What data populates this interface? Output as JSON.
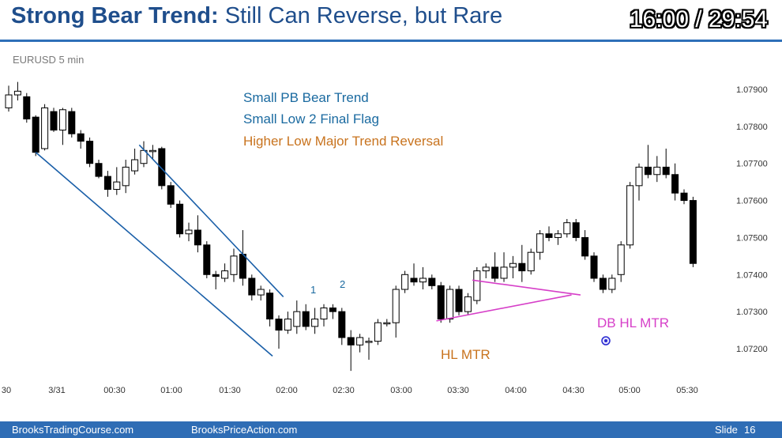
{
  "header": {
    "title_bold": "Strong Bear Trend:",
    "title_rest": " Still Can Reverse, but Rare",
    "timer": "16:00 / 29:54"
  },
  "symbol": "EURUSD 5 min",
  "footer": {
    "left": "BrooksTradingCourse.com",
    "center": "BrooksPriceAction.com",
    "slide_label": "Slide",
    "slide_number": "16"
  },
  "colors": {
    "title": "#1f4e8c",
    "accent_blue": "#2f6db5",
    "annotation_blue": "#1a6aa0",
    "annotation_orange": "#c8731e",
    "annotation_magenta": "#d63fc8",
    "trend_channel": "#1a5fa8"
  },
  "chart_data": {
    "type": "candlestick",
    "symbol": "EURUSD",
    "timeframe": "5 min",
    "x_tick_labels": [
      "30",
      "3/31",
      "00:30",
      "01:00",
      "01:30",
      "02:00",
      "02:30",
      "03:00",
      "03:30",
      "04:00",
      "04:30",
      "05:00",
      "05:30"
    ],
    "y_tick_labels": [
      "1.07900",
      "1.07800",
      "1.07700",
      "1.07600",
      "1.07500",
      "1.07400",
      "1.07300",
      "1.07200"
    ],
    "ylim": [
      1.0714,
      1.0795
    ],
    "grid": false,
    "annotations": {
      "line1": "Small PB Bear Trend",
      "line2": "Small Low 2 Final Flag",
      "line3": "Higher Low Major Trend Reversal",
      "label_1": "1",
      "label_2": "2",
      "hl_mtr": "HL MTR",
      "db_hl_mtr": "DB HL MTR"
    },
    "candles": [
      {
        "o": 1.0785,
        "h": 1.0791,
        "l": 1.0784,
        "c": 1.07885
      },
      {
        "o": 1.07885,
        "h": 1.0792,
        "l": 1.0787,
        "c": 1.07895
      },
      {
        "o": 1.0788,
        "h": 1.0789,
        "l": 1.0781,
        "c": 1.0782
      },
      {
        "o": 1.07825,
        "h": 1.0783,
        "l": 1.0772,
        "c": 1.0773
      },
      {
        "o": 1.0774,
        "h": 1.0786,
        "l": 1.07735,
        "c": 1.0785
      },
      {
        "o": 1.0784,
        "h": 1.0785,
        "l": 1.07785,
        "c": 1.0779
      },
      {
        "o": 1.0779,
        "h": 1.0785,
        "l": 1.0775,
        "c": 1.07845
      },
      {
        "o": 1.0784,
        "h": 1.0785,
        "l": 1.0777,
        "c": 1.0778
      },
      {
        "o": 1.0778,
        "h": 1.0779,
        "l": 1.0774,
        "c": 1.0776
      },
      {
        "o": 1.0776,
        "h": 1.0777,
        "l": 1.0769,
        "c": 1.077
      },
      {
        "o": 1.077,
        "h": 1.0771,
        "l": 1.0766,
        "c": 1.07665
      },
      {
        "o": 1.07665,
        "h": 1.0768,
        "l": 1.0761,
        "c": 1.0763
      },
      {
        "o": 1.0763,
        "h": 1.0769,
        "l": 1.07615,
        "c": 1.0765
      },
      {
        "o": 1.0764,
        "h": 1.0771,
        "l": 1.0762,
        "c": 1.0769
      },
      {
        "o": 1.0768,
        "h": 1.0774,
        "l": 1.0767,
        "c": 1.0771
      },
      {
        "o": 1.077,
        "h": 1.0776,
        "l": 1.0769,
        "c": 1.07735
      },
      {
        "o": 1.07735,
        "h": 1.0775,
        "l": 1.0771,
        "c": 1.07735
      },
      {
        "o": 1.0774,
        "h": 1.07745,
        "l": 1.0763,
        "c": 1.0764
      },
      {
        "o": 1.0764,
        "h": 1.0765,
        "l": 1.0758,
        "c": 1.0759
      },
      {
        "o": 1.0759,
        "h": 1.076,
        "l": 1.075,
        "c": 1.0751
      },
      {
        "o": 1.0751,
        "h": 1.0754,
        "l": 1.0749,
        "c": 1.0752
      },
      {
        "o": 1.0752,
        "h": 1.0756,
        "l": 1.0746,
        "c": 1.0748
      },
      {
        "o": 1.0748,
        "h": 1.0749,
        "l": 1.0739,
        "c": 1.074
      },
      {
        "o": 1.074,
        "h": 1.0741,
        "l": 1.0736,
        "c": 1.07395
      },
      {
        "o": 1.0739,
        "h": 1.0743,
        "l": 1.0738,
        "c": 1.0741
      },
      {
        "o": 1.074,
        "h": 1.0747,
        "l": 1.0738,
        "c": 1.0745
      },
      {
        "o": 1.07455,
        "h": 1.0752,
        "l": 1.0737,
        "c": 1.0739
      },
      {
        "o": 1.0739,
        "h": 1.074,
        "l": 1.0733,
        "c": 1.07345
      },
      {
        "o": 1.07345,
        "h": 1.0737,
        "l": 1.0733,
        "c": 1.0736
      },
      {
        "o": 1.0735,
        "h": 1.0736,
        "l": 1.0726,
        "c": 1.0728
      },
      {
        "o": 1.0728,
        "h": 1.0729,
        "l": 1.072,
        "c": 1.0725
      },
      {
        "o": 1.0725,
        "h": 1.073,
        "l": 1.0724,
        "c": 1.0728
      },
      {
        "o": 1.0726,
        "h": 1.0733,
        "l": 1.0724,
        "c": 1.073
      },
      {
        "o": 1.073,
        "h": 1.0732,
        "l": 1.0725,
        "c": 1.0726
      },
      {
        "o": 1.0726,
        "h": 1.0731,
        "l": 1.0724,
        "c": 1.0728
      },
      {
        "o": 1.0728,
        "h": 1.0732,
        "l": 1.0726,
        "c": 1.0731
      },
      {
        "o": 1.0731,
        "h": 1.0732,
        "l": 1.0728,
        "c": 1.073
      },
      {
        "o": 1.073,
        "h": 1.0731,
        "l": 1.0721,
        "c": 1.0723
      },
      {
        "o": 1.0723,
        "h": 1.0725,
        "l": 1.0714,
        "c": 1.0721
      },
      {
        "o": 1.0721,
        "h": 1.0724,
        "l": 1.0719,
        "c": 1.0723
      },
      {
        "o": 1.0722,
        "h": 1.0723,
        "l": 1.0717,
        "c": 1.0722
      },
      {
        "o": 1.0722,
        "h": 1.0728,
        "l": 1.0721,
        "c": 1.0727
      },
      {
        "o": 1.0727,
        "h": 1.0728,
        "l": 1.0726,
        "c": 1.0727
      },
      {
        "o": 1.0727,
        "h": 1.0737,
        "l": 1.0723,
        "c": 1.0736
      },
      {
        "o": 1.0736,
        "h": 1.0741,
        "l": 1.0735,
        "c": 1.074
      },
      {
        "o": 1.0739,
        "h": 1.0743,
        "l": 1.0737,
        "c": 1.0738
      },
      {
        "o": 1.0738,
        "h": 1.0742,
        "l": 1.0736,
        "c": 1.0739
      },
      {
        "o": 1.0739,
        "h": 1.074,
        "l": 1.0736,
        "c": 1.0737
      },
      {
        "o": 1.0737,
        "h": 1.0738,
        "l": 1.0727,
        "c": 1.0728
      },
      {
        "o": 1.0728,
        "h": 1.0737,
        "l": 1.0727,
        "c": 1.0736
      },
      {
        "o": 1.0736,
        "h": 1.0737,
        "l": 1.0729,
        "c": 1.073
      },
      {
        "o": 1.073,
        "h": 1.0735,
        "l": 1.0729,
        "c": 1.0734
      },
      {
        "o": 1.0733,
        "h": 1.0742,
        "l": 1.0732,
        "c": 1.0741
      },
      {
        "o": 1.0741,
        "h": 1.0743,
        "l": 1.0739,
        "c": 1.0742
      },
      {
        "o": 1.0742,
        "h": 1.0746,
        "l": 1.0738,
        "c": 1.0739
      },
      {
        "o": 1.0739,
        "h": 1.0746,
        "l": 1.0738,
        "c": 1.0742
      },
      {
        "o": 1.0742,
        "h": 1.0745,
        "l": 1.0739,
        "c": 1.0743
      },
      {
        "o": 1.0743,
        "h": 1.0748,
        "l": 1.0738,
        "c": 1.0741
      },
      {
        "o": 1.0741,
        "h": 1.0747,
        "l": 1.074,
        "c": 1.0746
      },
      {
        "o": 1.0746,
        "h": 1.0752,
        "l": 1.0744,
        "c": 1.0751
      },
      {
        "o": 1.0751,
        "h": 1.0753,
        "l": 1.0749,
        "c": 1.075
      },
      {
        "o": 1.075,
        "h": 1.0752,
        "l": 1.0748,
        "c": 1.0751
      },
      {
        "o": 1.0751,
        "h": 1.0755,
        "l": 1.075,
        "c": 1.0754
      },
      {
        "o": 1.0754,
        "h": 1.0755,
        "l": 1.0749,
        "c": 1.075
      },
      {
        "o": 1.075,
        "h": 1.0752,
        "l": 1.0744,
        "c": 1.0745
      },
      {
        "o": 1.0745,
        "h": 1.0746,
        "l": 1.0738,
        "c": 1.0739
      },
      {
        "o": 1.0739,
        "h": 1.074,
        "l": 1.0735,
        "c": 1.0736
      },
      {
        "o": 1.0736,
        "h": 1.074,
        "l": 1.0735,
        "c": 1.0739
      },
      {
        "o": 1.074,
        "h": 1.0749,
        "l": 1.0738,
        "c": 1.0748
      },
      {
        "o": 1.0748,
        "h": 1.0765,
        "l": 1.0747,
        "c": 1.0764
      },
      {
        "o": 1.0764,
        "h": 1.077,
        "l": 1.076,
        "c": 1.0769
      },
      {
        "o": 1.0769,
        "h": 1.0775,
        "l": 1.0766,
        "c": 1.0767
      },
      {
        "o": 1.0767,
        "h": 1.0772,
        "l": 1.0765,
        "c": 1.0769
      },
      {
        "o": 1.0769,
        "h": 1.0774,
        "l": 1.0766,
        "c": 1.0767
      },
      {
        "o": 1.0767,
        "h": 1.077,
        "l": 1.076,
        "c": 1.0762
      },
      {
        "o": 1.0762,
        "h": 1.0763,
        "l": 1.0759,
        "c": 1.076
      },
      {
        "o": 1.076,
        "h": 1.0761,
        "l": 1.0742,
        "c": 1.0743
      }
    ],
    "trend_lines": [
      {
        "name": "bear-channel-lower",
        "x1": 3,
        "y1": 1.0773,
        "x2": 29.3,
        "y2": 1.0718
      },
      {
        "name": "bear-channel-upper",
        "x1": 14.5,
        "y1": 1.0775,
        "x2": 30.5,
        "y2": 1.0734
      },
      {
        "name": "hl-mtr-line",
        "x1": 47.5,
        "y1": 1.07275,
        "x2": 62.5,
        "y2": 1.07345
      },
      {
        "name": "db-hl-mtr-line",
        "x1": 51.5,
        "y1": 1.07385,
        "x2": 63.5,
        "y2": 1.07345
      }
    ]
  }
}
